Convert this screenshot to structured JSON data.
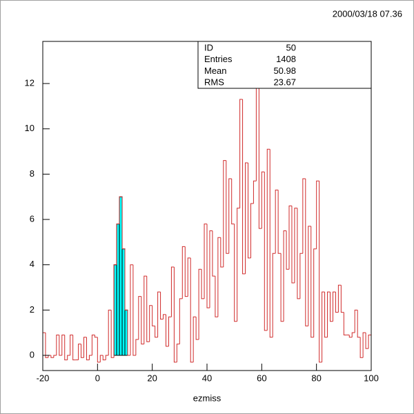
{
  "chart_data": {
    "type": "histogram",
    "timestamp": "2000/03/18  07.36",
    "xlabel": "ezmiss",
    "color": "#d02a2a",
    "bins": [
      -20,
      -19,
      -18,
      -17,
      -16,
      -15,
      -14,
      -13,
      -12,
      -11,
      -10,
      -9,
      -8,
      -7,
      -6,
      -5,
      -4,
      -3,
      -2,
      -1,
      0,
      1,
      2,
      3,
      4,
      5,
      6,
      7,
      8,
      9,
      10,
      11,
      12,
      13,
      14,
      15,
      16,
      17,
      18,
      19,
      20,
      21,
      22,
      23,
      24,
      25,
      26,
      27,
      28,
      29,
      30,
      31,
      32,
      33,
      34,
      35,
      36,
      37,
      38,
      39,
      40,
      41,
      42,
      43,
      44,
      45,
      46,
      47,
      48,
      49,
      50,
      51,
      52,
      53,
      54,
      55,
      56,
      57,
      58,
      59,
      60,
      61,
      62,
      63,
      64,
      65,
      66,
      67,
      68,
      69,
      70,
      71,
      72,
      73,
      74,
      75,
      76,
      77,
      78,
      79,
      80,
      81,
      82,
      83,
      84,
      85,
      86,
      87,
      88,
      89,
      90,
      91,
      92,
      93,
      94,
      95,
      96,
      97,
      98,
      99,
      100
    ],
    "counts": [
      1.0,
      -0.1,
      0,
      -0.1,
      0,
      0.9,
      0,
      0.9,
      -0.2,
      0,
      0.9,
      -0.2,
      -0.2,
      0.5,
      -0.1,
      0.8,
      -0.2,
      0,
      0.9,
      0.8,
      -0.3,
      0,
      -0.2,
      0,
      2.0,
      -0.1,
      4.0,
      5.8,
      7.0,
      4.7,
      2.0,
      0,
      4.0,
      0,
      0.7,
      2.6,
      0.5,
      3.5,
      0.6,
      2.2,
      1.3,
      0.8,
      2.8,
      1.6,
      1.8,
      0.4,
      1.7,
      3.9,
      -0.3,
      0.5,
      2.5,
      4.8,
      2.6,
      4.3,
      -0.3,
      1.7,
      0.7,
      3.8,
      2.5,
      5.8,
      2.1,
      5.5,
      3.5,
      1.7,
      5.2,
      3.9,
      8.6,
      4.5,
      7.8,
      5.8,
      1.5,
      6.5,
      11.3,
      3.6,
      8.5,
      4.3,
      6.7,
      7.7,
      12.5,
      5.6,
      8.1,
      1.1,
      9.1,
      0.8,
      4.5,
      7.3,
      4.5,
      1.5,
      5.5,
      3.8,
      6.6,
      3.2,
      6.5,
      2.5,
      4.5,
      7.8,
      1.3,
      5.7,
      0.8,
      4.7,
      7.7,
      -0.3,
      2.8,
      0.8,
      2.8,
      1.5,
      2.8,
      1.9,
      3.1,
      1.9,
      0.9,
      0.9,
      0.8,
      1.0,
      2.0,
      0.8,
      -0.1,
      1.0,
      0.3,
      0.9
    ],
    "highlight": {
      "color": "#00ffff",
      "edge_color": "#000000",
      "bins": [
        6,
        7,
        8,
        9,
        10,
        11
      ],
      "counts": [
        4.0,
        5.8,
        7.0,
        4.7,
        2.0
      ]
    },
    "xlim": [
      -20,
      100
    ],
    "ylim": [
      -0.67,
      13.86
    ],
    "xticks": [
      -20,
      0,
      20,
      40,
      60,
      80,
      100
    ],
    "yticks": [
      0,
      2,
      4,
      6,
      8,
      10,
      12
    ],
    "stats": [
      {
        "label": "ID",
        "value": "50"
      },
      {
        "label": "Entries",
        "value": "1408"
      },
      {
        "label": "Mean",
        "value": "50.98"
      },
      {
        "label": "RMS",
        "value": "23.67"
      }
    ]
  }
}
